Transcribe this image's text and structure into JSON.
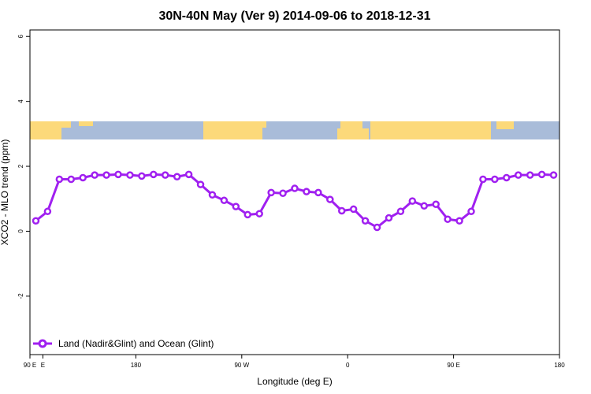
{
  "chart_data": {
    "type": "line",
    "title": "30N-40N May (Ver 9)   2014-09-06 to 2018-12-31",
    "x_label": "Longitude (deg E)",
    "y_label": "XCO2 - MLO trend (ppm)",
    "x": [
      -265,
      -255,
      -245,
      -235,
      -225,
      -215,
      -205,
      -195,
      -185,
      -175,
      -165,
      -155,
      -145,
      -135,
      -125,
      -115,
      -105,
      -95,
      -85,
      -75,
      -65,
      -55,
      -45,
      -35,
      -25,
      -15,
      -5,
      5,
      15,
      25,
      35,
      45,
      55,
      65,
      75,
      85,
      95,
      105,
      115,
      125,
      135,
      145,
      155,
      165,
      175
    ],
    "series": [
      {
        "name": "Land (Nadir&Glint) and Ocean (Glint)",
        "color": "#a020f0",
        "values": [
          0.32,
          0.61,
          1.6,
          1.6,
          1.65,
          1.73,
          1.73,
          1.75,
          1.73,
          1.7,
          1.75,
          1.73,
          1.68,
          1.75,
          1.44,
          1.12,
          0.95,
          0.76,
          0.51,
          0.54,
          1.19,
          1.17,
          1.32,
          1.22,
          1.19,
          0.98,
          0.63,
          0.68,
          0.32,
          0.12,
          0.41,
          0.61,
          0.93,
          0.78,
          0.83,
          0.37,
          0.32,
          0.61,
          1.6,
          1.6,
          1.65,
          1.73,
          1.73,
          1.75,
          1.73
        ]
      }
    ],
    "xlim": [
      -270,
      180
    ],
    "xticks": [
      {
        "value": -270,
        "label": "90 E"
      },
      {
        "value": -259,
        "label": "E"
      },
      {
        "value": -180,
        "label": "180"
      },
      {
        "value": -90,
        "label": "90 W"
      },
      0,
      {
        "value": 90,
        "label": "90 E"
      },
      180
    ],
    "ylim": [
      -3.8,
      6.2
    ],
    "yticks": [
      -2,
      0,
      2,
      4,
      6
    ],
    "legend": "bottom-left"
  }
}
